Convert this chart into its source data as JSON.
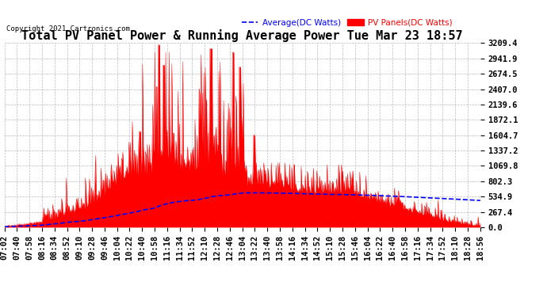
{
  "title": "Total PV Panel Power & Running Average Power Tue Mar 23 18:57",
  "copyright": "Copyright 2021 Cartronics.com",
  "legend_avg": "Average(DC Watts)",
  "legend_pv": "PV Panels(DC Watts)",
  "yticks": [
    0.0,
    267.4,
    534.9,
    802.3,
    1069.8,
    1337.2,
    1604.7,
    1872.1,
    2139.6,
    2407.0,
    2674.5,
    2941.9,
    3209.4
  ],
  "ymax": 3209.4,
  "ymin": 0.0,
  "bg_color": "#ffffff",
  "plot_bg_color": "#ffffff",
  "grid_color": "#aaaaaa",
  "pv_color": "red",
  "avg_color": "blue",
  "title_fontsize": 11,
  "tick_fontsize": 7.5,
  "x_labels": [
    "07:02",
    "07:40",
    "07:58",
    "08:16",
    "08:34",
    "08:52",
    "09:10",
    "09:28",
    "09:46",
    "10:04",
    "10:22",
    "10:40",
    "10:58",
    "11:16",
    "11:34",
    "11:52",
    "12:10",
    "12:28",
    "12:46",
    "13:04",
    "13:22",
    "13:40",
    "13:58",
    "14:16",
    "14:34",
    "14:52",
    "15:10",
    "15:28",
    "15:46",
    "16:04",
    "16:22",
    "16:40",
    "16:58",
    "17:16",
    "17:34",
    "17:52",
    "18:10",
    "18:28",
    "18:56"
  ]
}
